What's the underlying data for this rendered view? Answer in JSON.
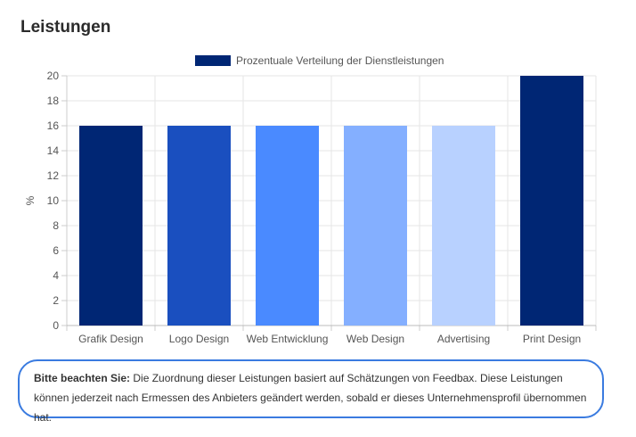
{
  "title": "Leistungen",
  "chart_data": {
    "type": "bar",
    "categories": [
      "Grafik Design",
      "Logo Design",
      "Web Entwicklung",
      "Web Design",
      "Advertising",
      "Print Design"
    ],
    "series": [
      {
        "name": "Prozentuale Verteilung der Dienstleistungen",
        "values": [
          16,
          16,
          16,
          16,
          16,
          20
        ]
      }
    ],
    "bar_colors": [
      "#002674",
      "#1a4fbf",
      "#4a8aff",
      "#84afff",
      "#b8d1ff",
      "#002674"
    ],
    "legend_color": "#002674",
    "ylabel": "%",
    "xlabel": "",
    "ylim": [
      0,
      20
    ],
    "yticks": [
      0,
      2,
      4,
      6,
      8,
      10,
      12,
      14,
      16,
      18,
      20
    ],
    "grid": true,
    "legend_position": "top-center"
  },
  "note": {
    "label": "Bitte beachten Sie:",
    "text": " Die Zuordnung dieser Leistungen basiert auf Schätzungen von Feedbax. Diese Leistungen können jederzeit nach Ermessen des Anbieters geändert werden, sobald er dieses Unternehmensprofil übernommen hat."
  }
}
